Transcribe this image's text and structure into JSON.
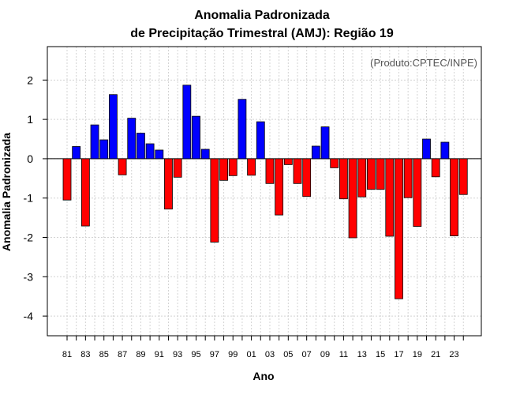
{
  "chart_data": {
    "type": "bar",
    "title": [
      "Anomalia Padronizada",
      "de Precipitação Trimestral (AMJ): Região 19"
    ],
    "credit": "(Produto:CPTEC/INPE)",
    "xlabel": "Ano",
    "ylabel": "Anomalia Padronizada",
    "ylim": [
      -4.5,
      2.85
    ],
    "yticks": [
      -4,
      -3,
      -2,
      -1,
      0,
      1,
      2
    ],
    "xtick_labels": [
      "81",
      "83",
      "85",
      "87",
      "89",
      "91",
      "93",
      "95",
      "97",
      "99",
      "01",
      "03",
      "05",
      "07",
      "09",
      "11",
      "13",
      "15",
      "17",
      "19",
      "21",
      "23"
    ],
    "grid": true,
    "positive_color": "#0000ff",
    "negative_color": "#ff0000",
    "categories": [
      "1981",
      "1982",
      "1983",
      "1984",
      "1985",
      "1986",
      "1987",
      "1988",
      "1989",
      "1990",
      "1991",
      "1992",
      "1993",
      "1994",
      "1995",
      "1996",
      "1997",
      "1998",
      "1999",
      "2000",
      "2001",
      "2002",
      "2003",
      "2004",
      "2005",
      "2006",
      "2007",
      "2008",
      "2009",
      "2010",
      "2011",
      "2012",
      "2013",
      "2014",
      "2015",
      "2016",
      "2017",
      "2018",
      "2019",
      "2020",
      "2021",
      "2022",
      "2023",
      "2024"
    ],
    "values": [
      -1.05,
      0.31,
      -1.71,
      0.86,
      0.48,
      1.63,
      -0.41,
      1.03,
      0.65,
      0.38,
      0.22,
      -1.28,
      -0.47,
      1.87,
      1.08,
      0.24,
      -2.12,
      -0.55,
      -0.43,
      1.51,
      -0.42,
      0.94,
      -0.63,
      -1.43,
      -0.15,
      -0.63,
      -0.96,
      0.32,
      0.81,
      -0.23,
      -1.02,
      -2.01,
      -0.97,
      -0.78,
      -0.78,
      -1.97,
      -3.56,
      -0.99,
      -1.72,
      0.5,
      -0.46,
      0.42,
      -1.96,
      -0.91
    ]
  }
}
